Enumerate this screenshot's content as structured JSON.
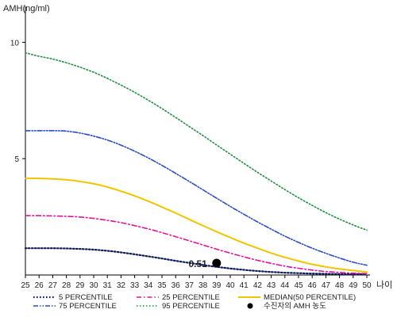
{
  "chart_data": {
    "type": "line",
    "ylabel": "AMH(ng/ml)",
    "xlabel": "나이",
    "x": [
      25,
      26,
      27,
      28,
      29,
      30,
      31,
      32,
      33,
      34,
      35,
      36,
      37,
      38,
      39,
      40,
      41,
      42,
      43,
      44,
      45,
      46,
      47,
      48,
      49,
      50
    ],
    "ylim": [
      0,
      11
    ],
    "xlim": [
      25,
      50
    ],
    "yticks": [
      5,
      10
    ],
    "series": [
      {
        "name": "5 PERCENTILE",
        "color": "#0b1a5c",
        "dash": "1.6 2.4",
        "width": 2.2,
        "values": [
          1.15,
          1.15,
          1.15,
          1.14,
          1.12,
          1.09,
          1.04,
          0.97,
          0.89,
          0.8,
          0.71,
          0.61,
          0.52,
          0.43,
          0.35,
          0.28,
          0.22,
          0.17,
          0.13,
          0.1,
          0.08,
          0.06,
          0.05,
          0.04,
          0.04,
          0.03
        ]
      },
      {
        "name": "25 PERCENTILE",
        "color": "#e0139c",
        "dash": "6 3 1.5 3",
        "width": 1.6,
        "values": [
          2.55,
          2.55,
          2.54,
          2.52,
          2.49,
          2.43,
          2.35,
          2.25,
          2.12,
          1.98,
          1.82,
          1.65,
          1.47,
          1.29,
          1.11,
          0.94,
          0.78,
          0.63,
          0.5,
          0.38,
          0.29,
          0.21,
          0.15,
          0.11,
          0.08,
          0.06
        ]
      },
      {
        "name": "MEDIAN(50 PERCENTILE)",
        "color": "#f2c400",
        "dash": "",
        "width": 2.0,
        "values": [
          4.15,
          4.15,
          4.13,
          4.09,
          4.02,
          3.92,
          3.78,
          3.6,
          3.4,
          3.17,
          2.92,
          2.66,
          2.39,
          2.12,
          1.86,
          1.61,
          1.37,
          1.15,
          0.94,
          0.76,
          0.6,
          0.46,
          0.35,
          0.26,
          0.19,
          0.13
        ]
      },
      {
        "name": "75 PERCENTILE",
        "color": "#2b4cc4",
        "dash": "6 2 1.5 2 1.5 2",
        "width": 1.6,
        "values": [
          6.2,
          6.2,
          6.2,
          6.18,
          6.1,
          5.97,
          5.8,
          5.58,
          5.32,
          5.03,
          4.71,
          4.37,
          4.02,
          3.66,
          3.3,
          2.95,
          2.61,
          2.28,
          1.97,
          1.67,
          1.4,
          1.15,
          0.93,
          0.73,
          0.55,
          0.42
        ]
      },
      {
        "name": "95 PERCENTILE",
        "color": "#1e8f3e",
        "dash": "1.5 2.5",
        "width": 1.6,
        "values": [
          9.55,
          9.4,
          9.28,
          9.12,
          8.93,
          8.71,
          8.45,
          8.16,
          7.85,
          7.51,
          7.15,
          6.77,
          6.38,
          5.99,
          5.59,
          5.19,
          4.8,
          4.41,
          4.04,
          3.67,
          3.32,
          2.99,
          2.68,
          2.4,
          2.15,
          1.93
        ]
      }
    ],
    "point": {
      "name": "수진자의 AMH 농도",
      "x": 39,
      "y": 0.51,
      "label": "0.51"
    },
    "legend": [
      {
        "label": "5 PERCENTILE",
        "series": 0
      },
      {
        "label": "25 PERCENTILE",
        "series": 1
      },
      {
        "label": "MEDIAN(50 PERCENTILE)",
        "series": 2
      },
      {
        "label": "75 PERCENTILE",
        "series": 3
      },
      {
        "label": "95 PERCENTILE",
        "series": 4
      },
      {
        "label": "수진자의 AMH 농도",
        "marker": true
      }
    ]
  }
}
